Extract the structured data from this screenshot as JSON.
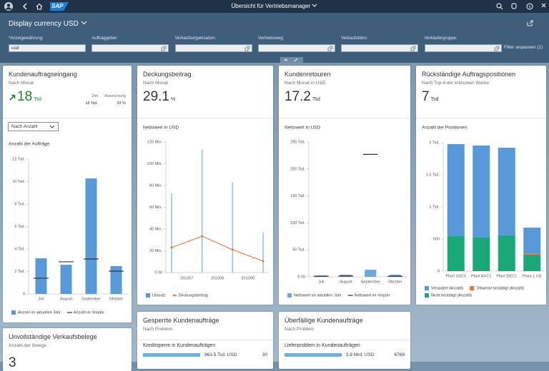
{
  "shell": {
    "logo": "SAP",
    "title": "Übersicht für Vertriebsmanager"
  },
  "header": {
    "title": "Display currency USD",
    "adapt": "Filter anpassen (1)",
    "filters": [
      {
        "label": "*Anzeigewährung:",
        "value": "usd"
      },
      {
        "label": "Auftraggeber:"
      },
      {
        "label": "Verkaufsorganisation:"
      },
      {
        "label": "Vertriebsweg:"
      },
      {
        "label": "Verkaufsbüro:"
      },
      {
        "label": "Verkäufergruppe:"
      }
    ]
  },
  "cards": [
    {
      "title": "Kundenauftragseingang",
      "subtitle": "Nach Monat",
      "kpi": 18,
      "unit": "Tsd",
      "trend": "up",
      "kpi_color": "#2b7d2b",
      "target_label": "Ziel",
      "deviation_label": "Abweichung",
      "target": "18 Tsd.",
      "deviation": "93 %",
      "dropdown": "Nach Anzahl"
    },
    {
      "title": "Deckungsbeitrag",
      "subtitle": "Nach Monat",
      "kpi": 29.1,
      "unit": "%"
    },
    {
      "title": "Kundenretouren",
      "subtitle": "Nach Monat in USD",
      "kpi": 17.2,
      "unit": "Tsd"
    },
    {
      "title": "Rückständige Auftragspositionen",
      "subtitle": "Nach Top-4 der kritischen Werke",
      "kpi": 7,
      "unit": "Tsd"
    },
    {
      "title": "Unvollständige Verkaufsbelege",
      "subtitle": "Anzahl der Belege",
      "kpi": 3
    },
    {
      "title": "Gesperrte Kundenaufträge",
      "subtitle": "Nach Problem",
      "bar_color": "#5cbae6",
      "items": [
        {
          "label": "Kreditsperre in Kundenaufträgen",
          "amount": "963.5 Tsd. USD",
          "count": 30
        }
      ]
    },
    {
      "title": "Überfällige Kundenaufträge",
      "subtitle": "Nach Problem",
      "bar_color": "#5cbae6",
      "items": [
        {
          "label": "Lieferproblem in Kundenaufträgen",
          "amount": "3.8 Mrd. USD",
          "count": 6769
        }
      ]
    }
  ],
  "chart_data": [
    {
      "type": "bar",
      "title": "Anzahl der Aufträge",
      "grid": false,
      "categories": [
        "Juli",
        "August",
        "September",
        "Oktober"
      ],
      "series": [
        {
          "name": "Anzahl im aktuellen Jahr",
          "mark": "bar",
          "color": "#5899da",
          "values": [
            3175,
            2600,
            10280,
            2480
          ]
        },
        {
          "name": "Anzahl im Vorjahr",
          "mark": "dash",
          "color": "#333333",
          "values": [
            1400,
            2860,
            3110,
            2030
          ]
        }
      ],
      "ylim": [
        0,
        12000
      ],
      "yticks": [
        0,
        {
          "value": 2000,
          "label": "2 Tsd."
        },
        {
          "value": 4000,
          "label": "4 Tsd."
        },
        {
          "value": 6000,
          "label": "6 Tsd."
        },
        {
          "value": 8000,
          "label": "8 Tsd."
        },
        {
          "value": 10000,
          "label": "10 Tsd."
        },
        {
          "value": 12000,
          "label": "12 Tsd."
        }
      ]
    },
    {
      "type": "bar",
      "title": "Nettowert in USD",
      "grid": false,
      "categories": [
        "201007",
        "201008",
        "201009",
        null
      ],
      "series": [
        {
          "name": "Umsatz",
          "mark": "bar",
          "color": "#8fc0ea",
          "values": [
            73000000,
            113000000,
            83000000,
            37000000
          ]
        },
        {
          "name": "Deckungsbeitrag",
          "mark": "line",
          "color": "#e8743b",
          "values": [
            23000000,
            33400000,
            21000000,
            10500000
          ]
        }
      ],
      "ylim": [
        0,
        120000000
      ],
      "yticks": [
        {
          "value": 0,
          "label": "0.00"
        },
        {
          "value": 20000000,
          "label": "20 Mio."
        },
        {
          "value": 40000000,
          "label": "40 Mio."
        },
        {
          "value": 60000000,
          "label": "60 Mio."
        },
        {
          "value": 80000000,
          "label": "80 Mio."
        },
        {
          "value": 100000000,
          "label": "100 Mio."
        },
        {
          "value": 120000000,
          "label": "120 Mio."
        }
      ]
    },
    {
      "type": "bar",
      "title": "Nettowert in USD",
      "grid": false,
      "categories": [
        "Juli",
        "August",
        "September",
        "Oktober"
      ],
      "series": [
        {
          "name": "Nettowert im aktuellen Jahr",
          "mark": "bar",
          "color": "#6ba6dc",
          "values": [
            2600,
            4000,
            13000,
            4000
          ]
        },
        {
          "name": "Nettowert im Vorjahr",
          "mark": "dash",
          "color": "#333333",
          "values": [
            1000,
            1500,
            227000,
            1000
          ]
        }
      ],
      "ylim": [
        0,
        250000
      ],
      "yticks": [
        {
          "value": 0,
          "label": "0.00"
        },
        {
          "value": 50000,
          "label": "50 Tsd."
        },
        {
          "value": 100000,
          "label": "100 Tsd."
        },
        {
          "value": 150000,
          "label": "150 Tsd."
        },
        {
          "value": 200000,
          "label": "200 Tsd."
        },
        {
          "value": 250000,
          "label": "250 Tsd."
        }
      ]
    },
    {
      "type": "stacked_bar",
      "title": "Anzahl der Positionen",
      "grid": false,
      "categories": [
        "Plant USC1",
        "Plant AUC1",
        "Plant DEC1",
        "Plant.1 US"
      ],
      "series": [
        {
          "name": "Nicht bestätigt (Anzahl)",
          "color": "#19a979",
          "values": [
            544,
            522,
            556,
            255
          ]
        },
        {
          "name": "Teilweise bestätigt (Anzahl)",
          "color": "#e8743b",
          "values": [
            0,
            0,
            0,
            20
          ]
        },
        {
          "name": "Verspätet (Anzahl)",
          "color": "#5899da",
          "values": [
            1434,
            1434,
            1366,
            403
          ]
        }
      ],
      "ylim": [
        0,
        2000
      ],
      "yticks": [
        0,
        500,
        {
          "value": 1000,
          "label": "1 Tsd."
        },
        {
          "value": 1500,
          "label": "1.5 Tsd."
        },
        {
          "value": 2000,
          "label": "2 Tsd."
        }
      ]
    }
  ]
}
